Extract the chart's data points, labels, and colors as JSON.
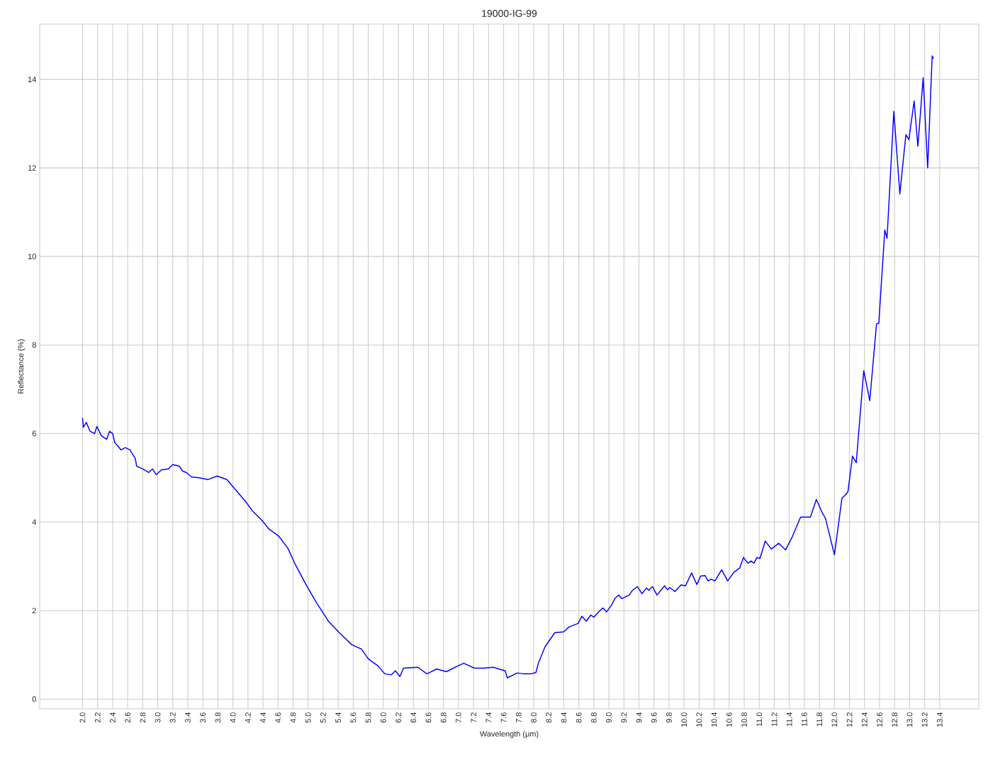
{
  "chart_data": {
    "type": "line",
    "title": "19000-IG-99",
    "xlabel": "Wavelength (μm)",
    "ylabel": "Reflectance (%)",
    "x": [
      2.0,
      2.01,
      2.05,
      2.1,
      2.16,
      2.19,
      2.25,
      2.32,
      2.36,
      2.4,
      2.43,
      2.47,
      2.51,
      2.57,
      2.63,
      2.7,
      2.72,
      2.8,
      2.88,
      2.93,
      2.98,
      3.05,
      3.14,
      3.2,
      3.29,
      3.33,
      3.38,
      3.45,
      3.55,
      3.67,
      3.79,
      3.92,
      4.04,
      4.17,
      4.26,
      4.39,
      4.48,
      4.61,
      4.73,
      4.83,
      4.98,
      5.11,
      5.27,
      5.42,
      5.58,
      5.71,
      5.8,
      5.93,
      6.02,
      6.11,
      6.16,
      6.22,
      6.27,
      6.46,
      6.58,
      6.71,
      6.84,
      6.99,
      7.07,
      7.21,
      7.34,
      7.46,
      7.62,
      7.65,
      7.78,
      7.87,
      7.96,
      8.03,
      8.06,
      8.15,
      8.28,
      8.4,
      8.47,
      8.59,
      8.64,
      8.7,
      8.76,
      8.8,
      8.87,
      8.92,
      8.97,
      9.03,
      9.08,
      9.13,
      9.17,
      9.27,
      9.31,
      9.38,
      9.44,
      9.5,
      9.53,
      9.58,
      9.64,
      9.74,
      9.78,
      9.81,
      9.88,
      9.96,
      10.02,
      10.1,
      10.17,
      10.22,
      10.28,
      10.32,
      10.36,
      10.41,
      10.5,
      10.58,
      10.66,
      10.74,
      10.79,
      10.85,
      10.89,
      10.93,
      10.97,
      11.01,
      11.08,
      11.16,
      11.26,
      11.35,
      11.44,
      11.55,
      11.61,
      11.68,
      11.76,
      11.84,
      11.88,
      12.0,
      12.1,
      12.15,
      12.18,
      12.24,
      12.29,
      12.39,
      12.47,
      12.56,
      12.59,
      12.67,
      12.7,
      12.79,
      12.87,
      12.95,
      12.99,
      13.06,
      13.11,
      13.18,
      13.24,
      13.3,
      13.32
    ],
    "values": [
      6.35,
      6.14,
      6.25,
      6.05,
      6.0,
      6.16,
      5.95,
      5.87,
      6.05,
      6.0,
      5.79,
      5.72,
      5.63,
      5.68,
      5.63,
      5.44,
      5.26,
      5.2,
      5.12,
      5.2,
      5.07,
      5.18,
      5.2,
      5.3,
      5.26,
      5.15,
      5.12,
      5.02,
      5.0,
      4.96,
      5.04,
      4.96,
      4.72,
      4.46,
      4.25,
      4.03,
      3.84,
      3.68,
      3.41,
      3.04,
      2.56,
      2.18,
      1.76,
      1.49,
      1.23,
      1.13,
      0.91,
      0.75,
      0.57,
      0.55,
      0.64,
      0.51,
      0.7,
      0.72,
      0.57,
      0.68,
      0.62,
      0.75,
      0.81,
      0.7,
      0.7,
      0.72,
      0.64,
      0.48,
      0.59,
      0.57,
      0.57,
      0.6,
      0.8,
      1.18,
      1.5,
      1.52,
      1.63,
      1.71,
      1.87,
      1.76,
      1.9,
      1.85,
      1.98,
      2.06,
      1.97,
      2.11,
      2.27,
      2.35,
      2.27,
      2.35,
      2.45,
      2.54,
      2.38,
      2.51,
      2.46,
      2.54,
      2.35,
      2.56,
      2.47,
      2.52,
      2.43,
      2.58,
      2.56,
      2.85,
      2.59,
      2.78,
      2.79,
      2.67,
      2.71,
      2.67,
      2.92,
      2.67,
      2.86,
      2.96,
      3.2,
      3.07,
      3.12,
      3.07,
      3.2,
      3.18,
      3.57,
      3.39,
      3.52,
      3.37,
      3.67,
      4.11,
      4.11,
      4.11,
      4.51,
      4.2,
      4.09,
      3.26,
      4.54,
      4.62,
      4.69,
      5.49,
      5.34,
      7.42,
      6.74,
      8.48,
      8.49,
      10.6,
      10.41,
      13.28,
      11.41,
      12.75,
      12.64,
      13.51,
      12.49,
      14.04,
      12.0,
      14.53,
      14.47
    ],
    "color": "#0000ff",
    "xlim": [
      1.43,
      13.92
    ],
    "ylim": [
      -0.22,
      15.25
    ],
    "xticks": [
      {
        "value": 2.0,
        "label": "2.0"
      },
      {
        "value": 2.2,
        "label": "2.2"
      },
      {
        "value": 2.4,
        "label": "2.4"
      },
      {
        "value": 2.6,
        "label": "2.6"
      },
      {
        "value": 2.8,
        "label": "2.8"
      },
      {
        "value": 3.0,
        "label": "3.0"
      },
      {
        "value": 3.2,
        "label": "3.2"
      },
      {
        "value": 3.4,
        "label": "3.4"
      },
      {
        "value": 3.6,
        "label": "3.6"
      },
      {
        "value": 3.8,
        "label": "3.8"
      },
      {
        "value": 4.0,
        "label": "4.0"
      },
      {
        "value": 4.2,
        "label": "4.2"
      },
      {
        "value": 4.4,
        "label": "4.4"
      },
      {
        "value": 4.6,
        "label": "4.6"
      },
      {
        "value": 4.8,
        "label": "4.8"
      },
      {
        "value": 5.0,
        "label": "5.0"
      },
      {
        "value": 5.2,
        "label": "5.2"
      },
      {
        "value": 5.4,
        "label": "5.4"
      },
      {
        "value": 5.6,
        "label": "5.6"
      },
      {
        "value": 5.8,
        "label": "5.8"
      },
      {
        "value": 6.0,
        "label": "6.0"
      },
      {
        "value": 6.2,
        "label": "6.2"
      },
      {
        "value": 6.4,
        "label": "6.4"
      },
      {
        "value": 6.6,
        "label": "6.6"
      },
      {
        "value": 6.8,
        "label": "6.8"
      },
      {
        "value": 7.0,
        "label": "7.0"
      },
      {
        "value": 7.2,
        "label": "7.2"
      },
      {
        "value": 7.4,
        "label": "7.4"
      },
      {
        "value": 7.6,
        "label": "7.6"
      },
      {
        "value": 7.8,
        "label": "7.8"
      },
      {
        "value": 8.0,
        "label": "8.0"
      },
      {
        "value": 8.2,
        "label": "8.2"
      },
      {
        "value": 8.4,
        "label": "8.4"
      },
      {
        "value": 8.6,
        "label": "8.6"
      },
      {
        "value": 8.8,
        "label": "8.8"
      },
      {
        "value": 9.0,
        "label": "9.0"
      },
      {
        "value": 9.2,
        "label": "9.2"
      },
      {
        "value": 9.4,
        "label": "9.4"
      },
      {
        "value": 9.6,
        "label": "9.6"
      },
      {
        "value": 9.8,
        "label": "9.8"
      },
      {
        "value": 10.0,
        "label": "10.0"
      },
      {
        "value": 10.2,
        "label": "10.2"
      },
      {
        "value": 10.4,
        "label": "10.4"
      },
      {
        "value": 10.6,
        "label": "10.6"
      },
      {
        "value": 10.8,
        "label": "10.8"
      },
      {
        "value": 11.0,
        "label": "11.0"
      },
      {
        "value": 11.2,
        "label": "11.2"
      },
      {
        "value": 11.4,
        "label": "11.4"
      },
      {
        "value": 11.6,
        "label": "11.6"
      },
      {
        "value": 11.8,
        "label": "11.8"
      },
      {
        "value": 12.0,
        "label": "12.0"
      },
      {
        "value": 12.2,
        "label": "12.2"
      },
      {
        "value": 12.4,
        "label": "12.4"
      },
      {
        "value": 12.6,
        "label": "12.6"
      },
      {
        "value": 12.8,
        "label": "12.8"
      },
      {
        "value": 13.0,
        "label": "13.0"
      },
      {
        "value": 13.2,
        "label": "13.2"
      },
      {
        "value": 13.4,
        "label": "13.4"
      }
    ],
    "yticks": [
      0,
      2,
      4,
      6,
      8,
      10,
      12,
      14
    ],
    "grid": true
  }
}
